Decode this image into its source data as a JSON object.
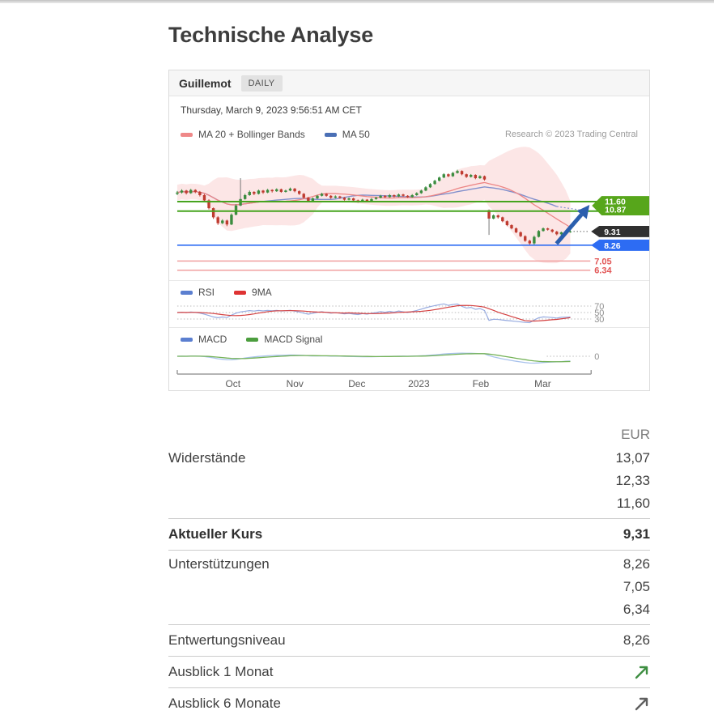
{
  "page": {
    "title": "Technische Analyse"
  },
  "widget": {
    "symbol": "Guillemot",
    "interval_tab": "DAILY",
    "timestamp": "Thursday, March 9, 2023 9:56:51 AM CET",
    "research_credit": "Research © 2023 Trading Central",
    "legend_main": [
      {
        "label": "MA 20 + Bollinger Bands",
        "color": "#ef8888"
      },
      {
        "label": "MA 50",
        "color": "#4a6fb5"
      }
    ],
    "legend_rsi": [
      {
        "label": "RSI",
        "color": "#5b7fd0"
      },
      {
        "label": "9MA",
        "color": "#de3333"
      }
    ],
    "legend_macd": [
      {
        "label": "MACD",
        "color": "#5b7fd0"
      },
      {
        "label": "MACD Signal",
        "color": "#4c9e3e"
      }
    ]
  },
  "chart_data": {
    "type": "candlestick",
    "x_axis": [
      "Oct",
      "Nov",
      "Dec",
      "2023",
      "Feb",
      "Mar"
    ],
    "levels": {
      "resistance_green": [
        11.6,
        10.87
      ],
      "current": 9.31,
      "support_blue": 8.26,
      "support_red": [
        7.05,
        6.34
      ]
    },
    "price_labels": {
      "green": [
        "11.60",
        "10.87"
      ],
      "current": "9.31",
      "blue": "8.26",
      "red": [
        "7.05",
        "6.34"
      ]
    },
    "colors": {
      "tag_green": "#57a61b",
      "tag_dark": "#303030",
      "tag_blue": "#2d6cf3",
      "line_green": "#46a41e",
      "line_blue": "#2d6cf3",
      "line_pink": "#f0a0a0",
      "red_text": "#e25555",
      "arrow_blue": "#2b5fae",
      "candle_up": "#3b8c3f",
      "candle_down": "#bf3b30",
      "ma20": "#ec8585",
      "ma50": "#8290cc",
      "band_fill": "rgba(240,128,128,0.20)",
      "rsi": "#97abe0",
      "rsi_ma": "#d44040",
      "macd": "#a8c2ec",
      "macd_signal": "#74b257"
    },
    "rsi_ticks": [
      70,
      50,
      30
    ],
    "macd_tick": 0,
    "candles": [
      [
        12.2,
        12.42,
        12.1,
        12.3
      ],
      [
        12.3,
        12.55,
        12.22,
        12.45
      ],
      [
        12.45,
        12.5,
        12.15,
        12.25
      ],
      [
        12.25,
        12.58,
        12.2,
        12.5
      ],
      [
        12.5,
        12.55,
        12.25,
        12.35
      ],
      [
        12.35,
        12.42,
        12.0,
        12.1
      ],
      [
        12.1,
        12.18,
        11.6,
        11.7
      ],
      [
        11.7,
        11.78,
        11.0,
        11.1
      ],
      [
        11.1,
        11.15,
        10.28,
        10.4
      ],
      [
        10.4,
        10.48,
        9.82,
        9.95
      ],
      [
        9.95,
        10.25,
        9.88,
        10.15
      ],
      [
        10.15,
        10.22,
        9.72,
        9.85
      ],
      [
        9.85,
        10.7,
        9.8,
        10.6
      ],
      [
        10.6,
        11.4,
        10.55,
        11.3
      ],
      [
        11.3,
        13.4,
        11.25,
        11.8
      ],
      [
        11.8,
        12.2,
        11.75,
        12.1
      ],
      [
        12.1,
        12.45,
        12.05,
        12.35
      ],
      [
        12.35,
        12.4,
        12.1,
        12.2
      ],
      [
        12.2,
        12.52,
        12.15,
        12.45
      ],
      [
        12.45,
        12.5,
        12.2,
        12.3
      ],
      [
        12.3,
        12.58,
        12.25,
        12.5
      ],
      [
        12.5,
        12.55,
        12.3,
        12.4
      ],
      [
        12.4,
        12.62,
        12.35,
        12.55
      ],
      [
        12.55,
        12.6,
        12.28,
        12.35
      ],
      [
        12.35,
        12.52,
        12.3,
        12.45
      ],
      [
        12.45,
        12.68,
        12.4,
        12.6
      ],
      [
        12.6,
        12.65,
        12.32,
        12.4
      ],
      [
        12.4,
        12.46,
        12.12,
        12.2
      ],
      [
        12.2,
        12.26,
        11.82,
        11.9
      ],
      [
        11.9,
        11.96,
        11.55,
        11.65
      ],
      [
        11.65,
        11.92,
        11.6,
        11.85
      ],
      [
        11.85,
        12.12,
        11.8,
        12.05
      ],
      [
        12.05,
        12.28,
        12.0,
        12.2
      ],
      [
        12.2,
        12.25,
        11.98,
        12.05
      ],
      [
        12.05,
        12.1,
        11.82,
        11.9
      ],
      [
        11.9,
        12.08,
        11.85,
        12.0
      ],
      [
        12.0,
        12.05,
        11.82,
        11.9
      ],
      [
        11.9,
        11.95,
        11.68,
        11.75
      ],
      [
        11.75,
        11.92,
        11.7,
        11.85
      ],
      [
        11.85,
        11.9,
        11.62,
        11.7
      ],
      [
        11.7,
        11.76,
        11.52,
        11.6
      ],
      [
        11.6,
        11.82,
        11.55,
        11.75
      ],
      [
        11.75,
        11.8,
        11.58,
        11.65
      ],
      [
        11.65,
        11.88,
        11.6,
        11.8
      ],
      [
        11.8,
        11.98,
        11.75,
        11.9
      ],
      [
        11.9,
        12.12,
        11.85,
        12.05
      ],
      [
        12.05,
        12.1,
        11.88,
        11.95
      ],
      [
        11.95,
        12.18,
        11.9,
        12.1
      ],
      [
        12.1,
        12.15,
        11.92,
        12.0
      ],
      [
        12.0,
        12.22,
        11.95,
        12.15
      ],
      [
        12.15,
        12.2,
        11.98,
        12.05
      ],
      [
        12.05,
        12.1,
        11.88,
        11.95
      ],
      [
        11.95,
        12.18,
        11.9,
        12.1
      ],
      [
        12.1,
        12.32,
        12.05,
        12.25
      ],
      [
        12.25,
        12.52,
        12.2,
        12.45
      ],
      [
        12.45,
        12.78,
        12.4,
        12.7
      ],
      [
        12.7,
        13.02,
        12.65,
        12.95
      ],
      [
        12.95,
        13.28,
        12.9,
        13.2
      ],
      [
        13.2,
        13.52,
        13.15,
        13.45
      ],
      [
        13.45,
        13.78,
        13.4,
        13.7
      ],
      [
        13.7,
        13.76,
        13.48,
        13.55
      ],
      [
        13.55,
        13.88,
        13.5,
        13.8
      ],
      [
        13.8,
        14.05,
        13.75,
        13.95
      ],
      [
        13.95,
        14.0,
        13.62,
        13.7
      ],
      [
        13.7,
        13.75,
        13.42,
        13.5
      ],
      [
        13.5,
        13.72,
        13.45,
        13.65
      ],
      [
        13.65,
        13.7,
        13.32,
        13.4
      ],
      [
        13.4,
        13.62,
        13.35,
        13.55
      ],
      [
        13.55,
        13.6,
        13.22,
        13.3
      ],
      [
        10.95,
        11.0,
        9.05,
        10.3
      ],
      [
        10.3,
        10.62,
        10.25,
        10.55
      ],
      [
        10.55,
        10.6,
        10.3,
        10.4
      ],
      [
        10.4,
        10.45,
        10.02,
        10.1
      ],
      [
        10.1,
        10.16,
        9.72,
        9.8
      ],
      [
        9.8,
        9.86,
        9.48,
        9.55
      ],
      [
        9.55,
        9.62,
        9.18,
        9.25
      ],
      [
        9.25,
        9.32,
        8.88,
        8.95
      ],
      [
        8.95,
        9.02,
        8.52,
        8.6
      ],
      [
        8.6,
        8.68,
        8.24,
        8.4
      ],
      [
        8.4,
        9.0,
        8.3,
        8.9
      ],
      [
        8.9,
        9.42,
        8.85,
        9.35
      ],
      [
        9.35,
        9.62,
        9.3,
        9.55
      ],
      [
        9.55,
        9.6,
        9.38,
        9.45
      ],
      [
        9.45,
        9.5,
        9.22,
        9.3
      ],
      [
        9.3,
        9.36,
        9.02,
        9.1
      ],
      [
        9.1,
        9.3,
        9.0,
        9.25
      ],
      [
        9.25,
        9.36,
        9.18,
        9.28
      ],
      [
        9.28,
        9.4,
        9.22,
        9.31
      ]
    ],
    "indicators": {
      "bollinger_window": 20,
      "ma_fast": 20,
      "ma_slow": 50,
      "rsi_period": 14,
      "rsi_ma": 9,
      "macd": "12,26,9"
    }
  },
  "table": {
    "currency": "EUR",
    "resistances": {
      "label": "Widerstände",
      "values": [
        "13,07",
        "12,33",
        "11,60"
      ]
    },
    "current": {
      "label": "Aktueller Kurs",
      "value": "9,31"
    },
    "supports": {
      "label": "Unterstützungen",
      "values": [
        "8,26",
        "7,05",
        "6,34"
      ]
    },
    "devaluation": {
      "label": "Entwertungsniveau",
      "value": "8,26"
    },
    "outlook_1m": {
      "label": "Ausblick 1 Monat",
      "icon": "trend-up-icon",
      "icon_color": "#3e8e41"
    },
    "outlook_6m": {
      "label": "Ausblick 6 Monate",
      "icon": "trend-up-icon",
      "icon_color": "#5f5f5f"
    }
  }
}
